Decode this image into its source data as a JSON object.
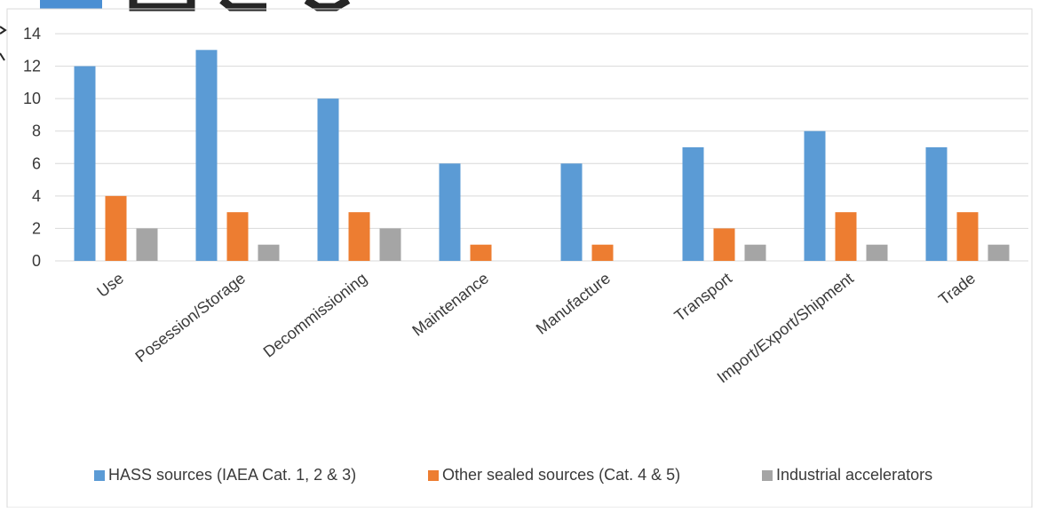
{
  "chart_data": {
    "type": "bar",
    "categories": [
      "Use",
      "Posession/Storage",
      "Decommissioning",
      "Maintenance",
      "Manufacture",
      "Transport",
      "Import/Export/Shipment",
      "Trade"
    ],
    "series": [
      {
        "name": "HASS sources (IAEA Cat. 1, 2 & 3)",
        "color": "#5b9bd5",
        "values": [
          12,
          13,
          10,
          6,
          6,
          7,
          8,
          7
        ]
      },
      {
        "name": "Other sealed sources (Cat. 4 & 5)",
        "color": "#ed7d31",
        "values": [
          4,
          3,
          3,
          1,
          1,
          2,
          3,
          3
        ]
      },
      {
        "name": "Industrial accelerators",
        "color": "#a5a5a5",
        "values": [
          2,
          1,
          2,
          0,
          0,
          1,
          1,
          1
        ]
      }
    ],
    "ylim": [
      0,
      14
    ],
    "yticks": [
      0,
      2,
      4,
      6,
      8,
      10,
      12,
      14
    ],
    "grid": true,
    "legend_position": "bottom"
  }
}
